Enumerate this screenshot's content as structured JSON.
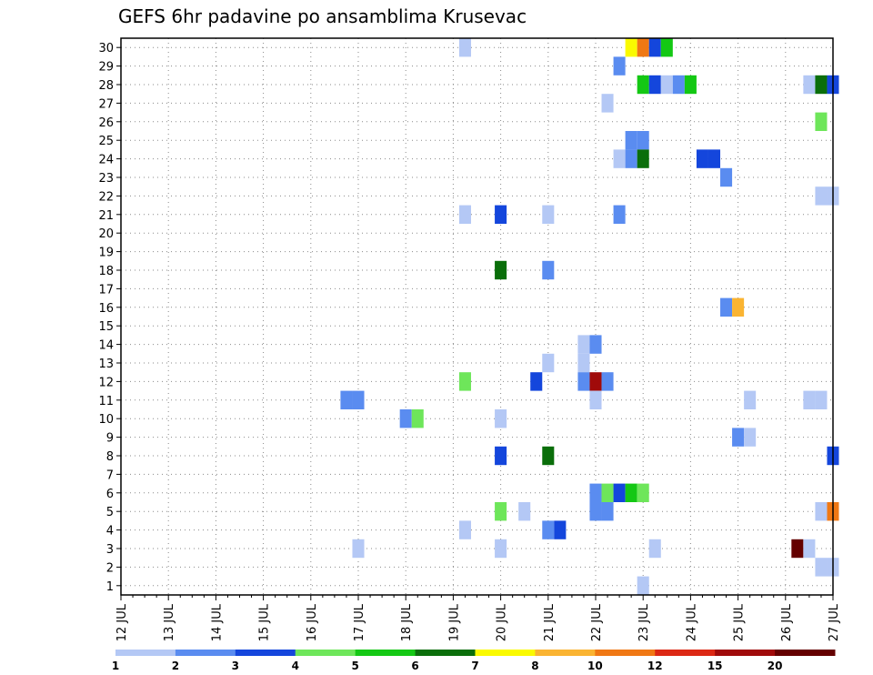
{
  "chart_data": {
    "type": "heatmap",
    "title": "GEFS 6hr padavine po ansamblima Krusevac",
    "xlabel": "",
    "ylabel": "",
    "x_ticks": [
      "12 JUL",
      "13 JUL",
      "14 JUL",
      "15 JUL",
      "16 JUL",
      "17 JUL",
      "18 JUL",
      "19 JUL",
      "20 JUL",
      "21 JUL",
      "22 JUL",
      "23 JUL",
      "24 JUL",
      "25 JUL",
      "26 JUL",
      "27 JUL"
    ],
    "y_ticks": [
      1,
      2,
      3,
      4,
      5,
      6,
      7,
      8,
      9,
      10,
      11,
      12,
      13,
      14,
      15,
      16,
      17,
      18,
      19,
      20,
      21,
      22,
      23,
      24,
      25,
      26,
      27,
      28,
      29,
      30
    ],
    "xlim": [
      0,
      15
    ],
    "ylim": [
      0.5,
      30.5
    ],
    "grid": true,
    "legend": {
      "placement": "bottom",
      "labels": [
        "1",
        "2",
        "3",
        "4",
        "5",
        "6",
        "7",
        "8",
        "10",
        "12",
        "15",
        "20"
      ],
      "colors": [
        "#b4c8f5",
        "#5a8cf0",
        "#1446dc",
        "#6ee65a",
        "#14c814",
        "#0a6e0a",
        "#fafa00",
        "#fab432",
        "#f07814",
        "#dc2814",
        "#a00a0a",
        "#640000"
      ]
    },
    "cells": [
      {
        "member": 30,
        "t": 7.25,
        "level": 1
      },
      {
        "member": 30,
        "t": 10.75,
        "level": 7
      },
      {
        "member": 30,
        "t": 11.0,
        "level": 9
      },
      {
        "member": 30,
        "t": 11.25,
        "level": 3
      },
      {
        "member": 30,
        "t": 11.5,
        "level": 5
      },
      {
        "member": 29,
        "t": 10.5,
        "level": 2
      },
      {
        "member": 28,
        "t": 11.0,
        "level": 5
      },
      {
        "member": 28,
        "t": 11.25,
        "level": 3
      },
      {
        "member": 28,
        "t": 11.5,
        "level": 1
      },
      {
        "member": 28,
        "t": 11.75,
        "level": 2
      },
      {
        "member": 28,
        "t": 12.0,
        "level": 5
      },
      {
        "member": 28,
        "t": 14.5,
        "level": 1
      },
      {
        "member": 28,
        "t": 14.75,
        "level": 6
      },
      {
        "member": 28,
        "t": 15.0,
        "level": 3
      },
      {
        "member": 27,
        "t": 10.25,
        "level": 1
      },
      {
        "member": 26,
        "t": 14.75,
        "level": 4
      },
      {
        "member": 25,
        "t": 10.75,
        "level": 2
      },
      {
        "member": 25,
        "t": 11.0,
        "level": 2
      },
      {
        "member": 24,
        "t": 10.5,
        "level": 1
      },
      {
        "member": 24,
        "t": 10.75,
        "level": 2
      },
      {
        "member": 24,
        "t": 11.0,
        "level": 6
      },
      {
        "member": 24,
        "t": 12.25,
        "level": 3
      },
      {
        "member": 24,
        "t": 12.5,
        "level": 3
      },
      {
        "member": 23,
        "t": 12.75,
        "level": 2
      },
      {
        "member": 22,
        "t": 14.75,
        "level": 1
      },
      {
        "member": 22,
        "t": 15.0,
        "level": 1
      },
      {
        "member": 21,
        "t": 7.25,
        "level": 1
      },
      {
        "member": 21,
        "t": 8.0,
        "level": 3
      },
      {
        "member": 21,
        "t": 9.0,
        "level": 1
      },
      {
        "member": 21,
        "t": 10.5,
        "level": 2
      },
      {
        "member": 18,
        "t": 8.0,
        "level": 6
      },
      {
        "member": 18,
        "t": 9.0,
        "level": 2
      },
      {
        "member": 16,
        "t": 12.75,
        "level": 2
      },
      {
        "member": 16,
        "t": 13.0,
        "level": 8
      },
      {
        "member": 14,
        "t": 9.75,
        "level": 1
      },
      {
        "member": 14,
        "t": 10.0,
        "level": 2
      },
      {
        "member": 13,
        "t": 9.0,
        "level": 1
      },
      {
        "member": 13,
        "t": 9.75,
        "level": 1
      },
      {
        "member": 12,
        "t": 7.25,
        "level": 4
      },
      {
        "member": 12,
        "t": 8.75,
        "level": 3
      },
      {
        "member": 12,
        "t": 9.75,
        "level": 2
      },
      {
        "member": 12,
        "t": 10.0,
        "level": 11
      },
      {
        "member": 12,
        "t": 10.25,
        "level": 2
      },
      {
        "member": 11,
        "t": 4.75,
        "level": 2
      },
      {
        "member": 11,
        "t": 5.0,
        "level": 2
      },
      {
        "member": 11,
        "t": 10.0,
        "level": 1
      },
      {
        "member": 11,
        "t": 13.25,
        "level": 1
      },
      {
        "member": 11,
        "t": 14.5,
        "level": 1
      },
      {
        "member": 11,
        "t": 14.75,
        "level": 1
      },
      {
        "member": 10,
        "t": 6.0,
        "level": 2
      },
      {
        "member": 10,
        "t": 6.25,
        "level": 4
      },
      {
        "member": 10,
        "t": 8.0,
        "level": 1
      },
      {
        "member": 9,
        "t": 13.0,
        "level": 2
      },
      {
        "member": 9,
        "t": 13.25,
        "level": 1
      },
      {
        "member": 8,
        "t": 8.0,
        "level": 3
      },
      {
        "member": 8,
        "t": 9.0,
        "level": 6
      },
      {
        "member": 8,
        "t": 15.0,
        "level": 3
      },
      {
        "member": 6,
        "t": 10.0,
        "level": 2
      },
      {
        "member": 6,
        "t": 10.25,
        "level": 4
      },
      {
        "member": 6,
        "t": 10.5,
        "level": 3
      },
      {
        "member": 6,
        "t": 10.75,
        "level": 5
      },
      {
        "member": 6,
        "t": 11.0,
        "level": 4
      },
      {
        "member": 5,
        "t": 8.0,
        "level": 4
      },
      {
        "member": 5,
        "t": 8.5,
        "level": 1
      },
      {
        "member": 5,
        "t": 10.0,
        "level": 2
      },
      {
        "member": 5,
        "t": 10.25,
        "level": 2
      },
      {
        "member": 5,
        "t": 14.75,
        "level": 1
      },
      {
        "member": 5,
        "t": 15.0,
        "level": 9
      },
      {
        "member": 4,
        "t": 7.25,
        "level": 1
      },
      {
        "member": 4,
        "t": 9.0,
        "level": 2
      },
      {
        "member": 4,
        "t": 9.25,
        "level": 3
      },
      {
        "member": 3,
        "t": 5.0,
        "level": 1
      },
      {
        "member": 3,
        "t": 8.0,
        "level": 1
      },
      {
        "member": 3,
        "t": 11.25,
        "level": 1
      },
      {
        "member": 3,
        "t": 14.25,
        "level": 12
      },
      {
        "member": 3,
        "t": 14.5,
        "level": 1
      },
      {
        "member": 2,
        "t": 14.75,
        "level": 1
      },
      {
        "member": 2,
        "t": 15.0,
        "level": 1
      },
      {
        "member": 1,
        "t": 11.0,
        "level": 1
      }
    ]
  }
}
